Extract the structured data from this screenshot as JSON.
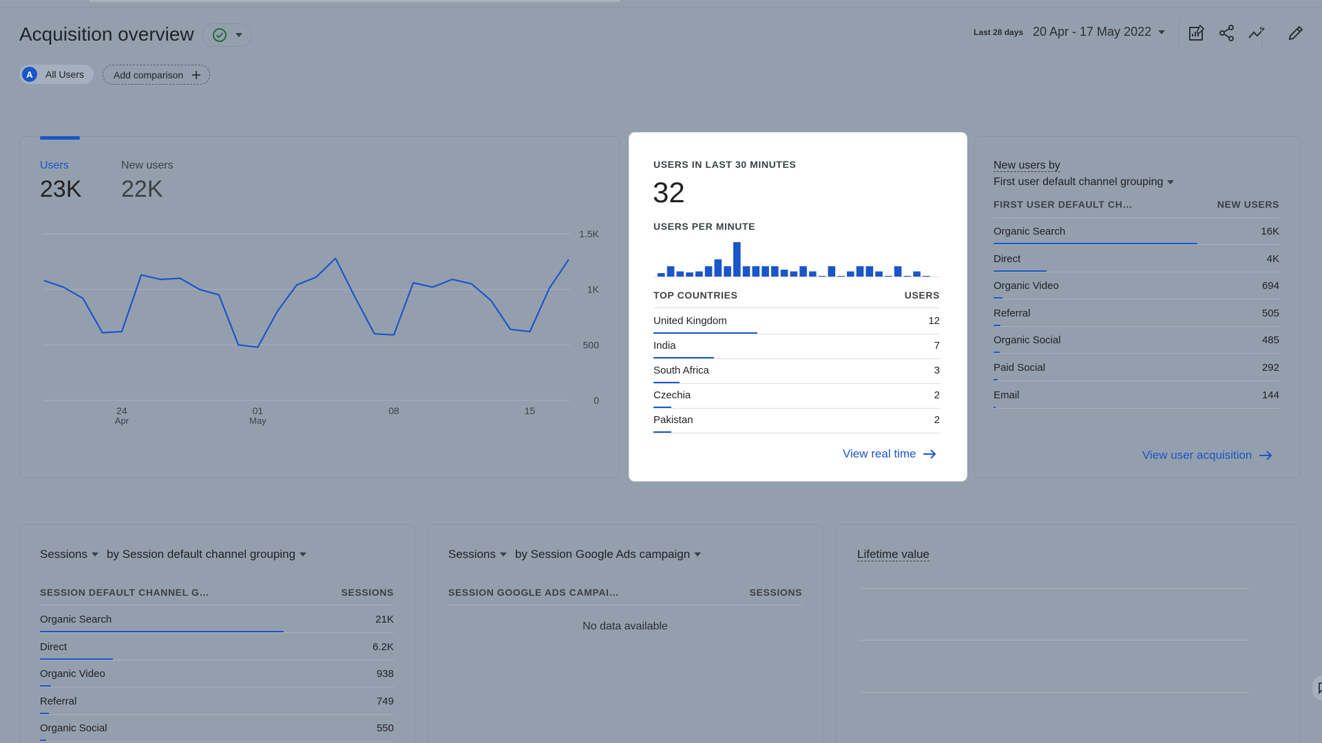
{
  "header": {
    "title": "Acquisition overview",
    "date_label": "Last 28 days",
    "date_range": "20 Apr - 17 May 2022",
    "icons": [
      "customize-report-icon",
      "share-icon",
      "insights-icon",
      "edit-icon"
    ]
  },
  "comparison": {
    "segment_avatar": "A",
    "segment_label": "All Users",
    "add_label": "Add comparison"
  },
  "users_card": {
    "tabs": [
      {
        "label": "Users",
        "value": "23K"
      },
      {
        "label": "New users",
        "value": "22K"
      }
    ],
    "chart_data": {
      "type": "line",
      "series": [
        {
          "values": [
            1080,
            1020,
            920,
            610,
            620,
            1130,
            1090,
            1100,
            1000,
            950,
            500,
            480,
            800,
            1040,
            1110,
            1280,
            930,
            600,
            590,
            1060,
            1020,
            1090,
            1050,
            900,
            640,
            620,
            1010,
            1270
          ]
        }
      ],
      "x_ticks": [
        {
          "label": "24",
          "sub": "Apr",
          "index": 4
        },
        {
          "label": "01",
          "sub": "May",
          "index": 11
        },
        {
          "label": "08",
          "sub": "",
          "index": 18
        },
        {
          "label": "15",
          "sub": "",
          "index": 25
        }
      ],
      "y_ticks": [
        "0",
        "500",
        "1K",
        "1.5K"
      ],
      "ylim": [
        0,
        1500
      ],
      "line_color": "#1a56c8"
    }
  },
  "realtime_card": {
    "title": "USERS IN LAST 30 MINUTES",
    "value": "32",
    "per_minute_label": "USERS PER MINUTE",
    "chart_data": {
      "type": "bar",
      "values": [
        1,
        3,
        1.5,
        1.2,
        1.5,
        3,
        5,
        3,
        10,
        3,
        3,
        3,
        3,
        2,
        1.5,
        3,
        1.5,
        0.2,
        3,
        0.2,
        1.5,
        3,
        3,
        1.5,
        0.2,
        3,
        0.2,
        1.5,
        0.2
      ]
    },
    "countries_header": "TOP COUNTRIES",
    "users_header": "USERS",
    "countries": [
      {
        "name": "United Kingdom",
        "value": "12",
        "share": 1.0
      },
      {
        "name": "India",
        "value": "7",
        "share": 0.58
      },
      {
        "name": "South Africa",
        "value": "3",
        "share": 0.25
      },
      {
        "name": "Czechia",
        "value": "2",
        "share": 0.17
      },
      {
        "name": "Pakistan",
        "value": "2",
        "share": 0.17
      }
    ],
    "link": "View real time"
  },
  "new_users_card": {
    "title_line1": "New users by",
    "title_line2": "First user default channel grouping",
    "col1": "FIRST USER DEFAULT CH…",
    "col2": "NEW USERS",
    "rows": [
      {
        "name": "Organic Search",
        "value": "16K",
        "share": 1.0
      },
      {
        "name": "Direct",
        "value": "4K",
        "share": 0.26
      },
      {
        "name": "Organic Video",
        "value": "694",
        "share": 0.045
      },
      {
        "name": "Referral",
        "value": "505",
        "share": 0.033
      },
      {
        "name": "Organic Social",
        "value": "485",
        "share": 0.032
      },
      {
        "name": "Paid Social",
        "value": "292",
        "share": 0.019
      },
      {
        "name": "Email",
        "value": "144",
        "share": 0.01
      }
    ],
    "link": "View user acquisition"
  },
  "sessions_channel_card": {
    "metric": "Sessions",
    "by": "by Session default channel grouping",
    "col1": "SESSION DEFAULT CHANNEL G…",
    "col2": "SESSIONS",
    "rows": [
      {
        "name": "Organic Search",
        "value": "21K",
        "share": 1.0
      },
      {
        "name": "Direct",
        "value": "6.2K",
        "share": 0.3
      },
      {
        "name": "Organic Video",
        "value": "938",
        "share": 0.045
      },
      {
        "name": "Referral",
        "value": "749",
        "share": 0.036
      },
      {
        "name": "Organic Social",
        "value": "550",
        "share": 0.026
      }
    ]
  },
  "sessions_ads_card": {
    "metric": "Sessions",
    "by": "by Session Google Ads campaign",
    "col1": "SESSION GOOGLE ADS CAMPAI…",
    "col2": "SESSIONS",
    "empty": "No data available"
  },
  "lifetime_card": {
    "title": "Lifetime value"
  }
}
